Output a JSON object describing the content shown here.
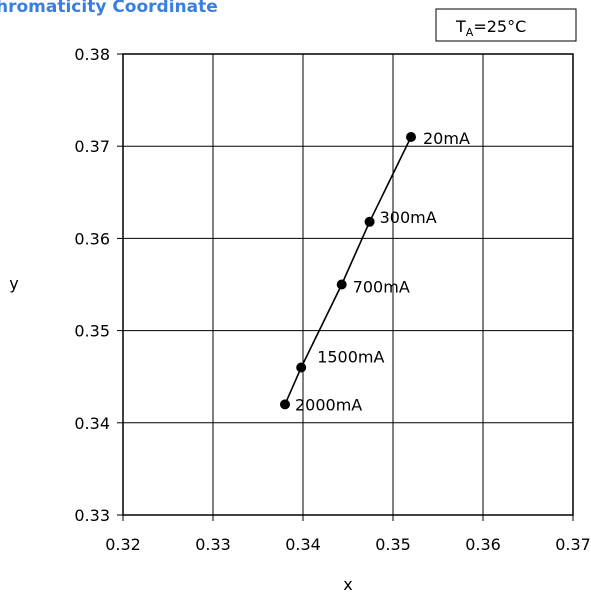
{
  "chart_data": {
    "type": "scatter",
    "title": "hromaticity Coordinate",
    "title_color": "#3a7ee0",
    "condition": {
      "main": "T",
      "sub": "A",
      "rest": "=25°C"
    },
    "xlabel": "x",
    "ylabel": "y",
    "xlim": [
      0.32,
      0.37
    ],
    "ylim": [
      0.33,
      0.38
    ],
    "x_ticks": [
      "0.32",
      "0.33",
      "0.34",
      "0.35",
      "0.36",
      "0.37"
    ],
    "y_ticks": [
      "0.33",
      "0.34",
      "0.35",
      "0.36",
      "0.37",
      "0.38"
    ],
    "grid": true,
    "series": [
      {
        "points": [
          {
            "x": 0.338,
            "y": 0.342,
            "label": "2000mA"
          },
          {
            "x": 0.3398,
            "y": 0.346,
            "label": "1500mA"
          },
          {
            "x": 0.3443,
            "y": 0.355,
            "label": "700mA"
          },
          {
            "x": 0.3474,
            "y": 0.3618,
            "label": "300mA"
          },
          {
            "x": 0.352,
            "y": 0.371,
            "label": "20mA"
          }
        ]
      }
    ]
  }
}
